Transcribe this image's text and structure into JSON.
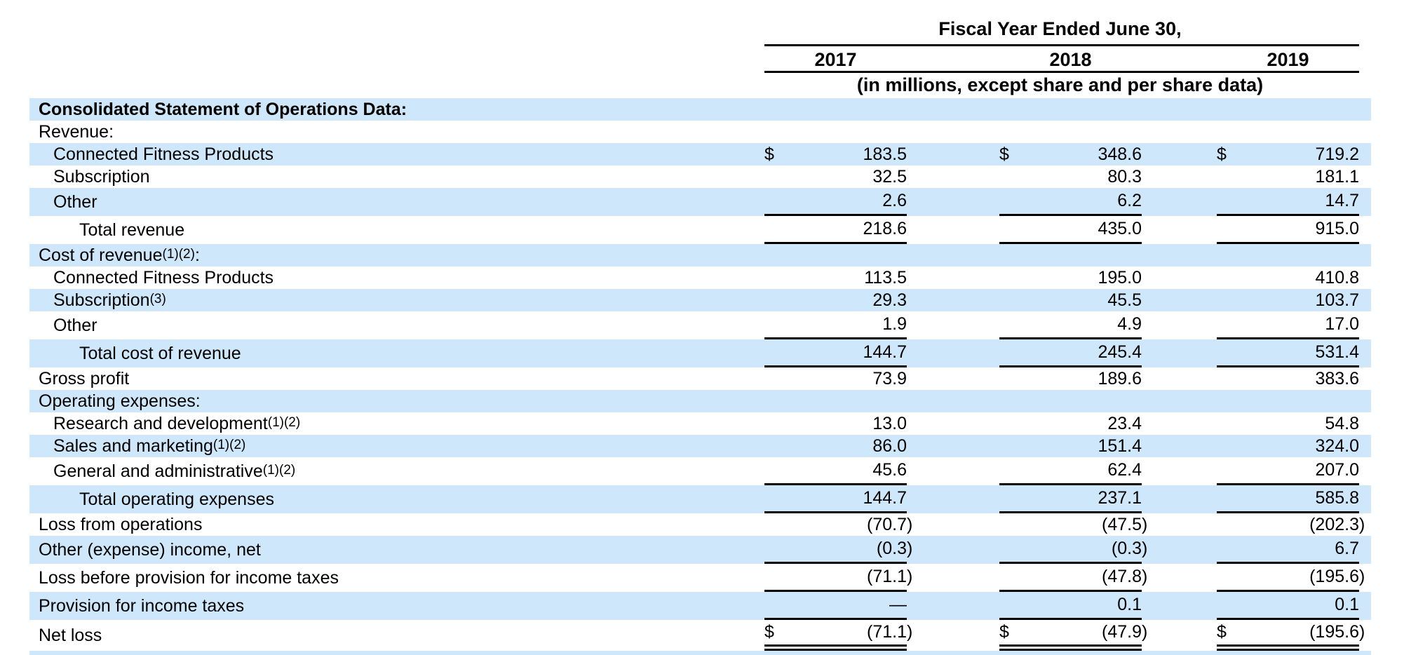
{
  "header": {
    "title": "Fiscal Year Ended June 30,",
    "years": [
      "2017",
      "2018",
      "2019"
    ],
    "units_note": "(in millions, except share and per share data)"
  },
  "table": {
    "currency_symbol": "$",
    "rows": [
      {
        "label": "Consolidated Statement of Operations Data:",
        "indent": 0,
        "bold": true,
        "shaded": true,
        "dollar": false,
        "values": null,
        "rule": null
      },
      {
        "label": "Revenue:",
        "indent": 0,
        "bold": false,
        "shaded": false,
        "dollar": false,
        "values": null,
        "rule": null
      },
      {
        "label": "Connected Fitness Products",
        "indent": 1,
        "bold": false,
        "shaded": true,
        "dollar": true,
        "values": [
          "183.5",
          "348.6",
          "719.2"
        ],
        "rule": null
      },
      {
        "label": "Subscription",
        "indent": 1,
        "bold": false,
        "shaded": false,
        "dollar": false,
        "values": [
          "32.5",
          "80.3",
          "181.1"
        ],
        "rule": null
      },
      {
        "label": "Other",
        "indent": 1,
        "bold": false,
        "shaded": true,
        "dollar": false,
        "values": [
          "2.6",
          "6.2",
          "14.7"
        ],
        "rule": "single"
      },
      {
        "label": "Total revenue",
        "indent": 2,
        "bold": false,
        "shaded": false,
        "dollar": false,
        "values": [
          "218.6",
          "435.0",
          "915.0"
        ],
        "rule": "single"
      },
      {
        "label": "Cost of revenue(1)(2):",
        "indent": 0,
        "bold": false,
        "shaded": true,
        "dollar": false,
        "values": null,
        "rule": null
      },
      {
        "label": "Connected Fitness Products",
        "indent": 1,
        "bold": false,
        "shaded": false,
        "dollar": false,
        "values": [
          "113.5",
          "195.0",
          "410.8"
        ],
        "rule": null
      },
      {
        "label": "Subscription(3)",
        "indent": 1,
        "bold": false,
        "shaded": true,
        "dollar": false,
        "values": [
          "29.3",
          "45.5",
          "103.7"
        ],
        "rule": null
      },
      {
        "label": "Other",
        "indent": 1,
        "bold": false,
        "shaded": false,
        "dollar": false,
        "values": [
          "1.9",
          "4.9",
          "17.0"
        ],
        "rule": "single"
      },
      {
        "label": "Total cost of revenue",
        "indent": 2,
        "bold": false,
        "shaded": true,
        "dollar": false,
        "values": [
          "144.7",
          "245.4",
          "531.4"
        ],
        "rule": "single"
      },
      {
        "label": "Gross profit",
        "indent": 0,
        "bold": false,
        "shaded": false,
        "dollar": false,
        "values": [
          "73.9",
          "189.6",
          "383.6"
        ],
        "rule": null
      },
      {
        "label": "Operating expenses:",
        "indent": 0,
        "bold": false,
        "shaded": true,
        "dollar": false,
        "values": null,
        "rule": null
      },
      {
        "label": "Research and development(1)(2)",
        "indent": 1,
        "bold": false,
        "shaded": false,
        "dollar": false,
        "values": [
          "13.0",
          "23.4",
          "54.8"
        ],
        "rule": null
      },
      {
        "label": "Sales and marketing(1)(2)",
        "indent": 1,
        "bold": false,
        "shaded": true,
        "dollar": false,
        "values": [
          "86.0",
          "151.4",
          "324.0"
        ],
        "rule": null
      },
      {
        "label": "General and administrative(1)(2)",
        "indent": 1,
        "bold": false,
        "shaded": false,
        "dollar": false,
        "values": [
          "45.6",
          "62.4",
          "207.0"
        ],
        "rule": "single"
      },
      {
        "label": "Total operating expenses",
        "indent": 2,
        "bold": false,
        "shaded": true,
        "dollar": false,
        "values": [
          "144.7",
          "237.1",
          "585.8"
        ],
        "rule": "single"
      },
      {
        "label": "Loss from operations",
        "indent": 0,
        "bold": false,
        "shaded": false,
        "dollar": false,
        "values": [
          "(70.7)",
          "(47.5)",
          "(202.3)"
        ],
        "rule": null
      },
      {
        "label": "Other (expense) income, net",
        "indent": 0,
        "bold": false,
        "shaded": true,
        "dollar": false,
        "values": [
          "(0.3)",
          "(0.3)",
          "6.7"
        ],
        "rule": "single"
      },
      {
        "label": "Loss before provision for income taxes",
        "indent": 0,
        "bold": false,
        "shaded": false,
        "dollar": false,
        "values": [
          "(71.1)",
          "(47.8)",
          "(195.6)"
        ],
        "rule": "single"
      },
      {
        "label": "Provision for income taxes",
        "indent": 0,
        "bold": false,
        "shaded": true,
        "dollar": false,
        "values": [
          "—",
          "0.1",
          "0.1"
        ],
        "rule": "single"
      },
      {
        "label": "Net loss",
        "indent": 0,
        "bold": false,
        "shaded": false,
        "dollar": true,
        "values": [
          "(71.1)",
          "(47.9)",
          "(195.6)"
        ],
        "rule": "double"
      }
    ]
  },
  "colors": {
    "row_shade": "#cfe7fa",
    "text": "#000000",
    "rule": "#000000",
    "background": "#ffffff"
  }
}
